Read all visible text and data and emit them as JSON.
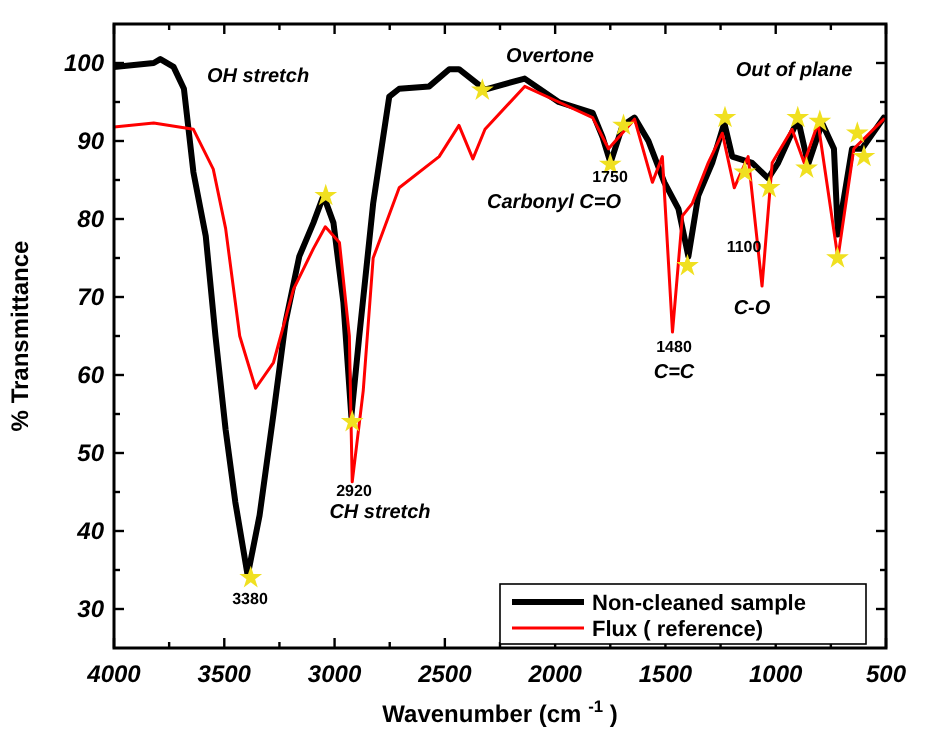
{
  "chart_data": {
    "type": "line",
    "xlabel": "Wavenumber (cm $^{-1}$ )",
    "ylabel": "% Transmittance",
    "xlim": [
      4000,
      500
    ],
    "ylim": [
      25,
      105
    ],
    "xticks": [
      4000,
      {
        "value": 3750,
        "label": null
      },
      3500,
      {
        "value": 3250,
        "label": null
      },
      3000,
      {
        "value": 2750,
        "label": null
      },
      2500,
      {
        "value": 2250,
        "label": null
      },
      2000,
      {
        "value": 1750,
        "label": null
      },
      1500,
      {
        "value": 1250,
        "label": null
      },
      1000,
      {
        "value": 750,
        "label": null
      },
      500
    ],
    "yticks": [
      30,
      {
        "value": 35,
        "label": null
      },
      40,
      {
        "value": 45,
        "label": null
      },
      50,
      {
        "value": 55,
        "label": null
      },
      60,
      {
        "value": 65,
        "label": null
      },
      70,
      {
        "value": 75,
        "label": null
      },
      80,
      {
        "value": 85,
        "label": null
      },
      90,
      {
        "value": 95,
        "label": null
      },
      100
    ],
    "grid": false,
    "legend": "bottom right",
    "series": [
      {
        "name": "Non-cleaned sample",
        "color": "#000000",
        "x": [
          4000,
          3820,
          3790,
          3730,
          3683,
          3640,
          3584,
          3540,
          3494,
          3450,
          3394,
          3340,
          3277,
          3222,
          3160,
          3096,
          3050,
          3005,
          2960,
          2924,
          2888,
          2825,
          2752,
          2707,
          2571,
          2480,
          2436,
          2318,
          2138,
          1984,
          1830,
          1785,
          1749,
          1694,
          1640,
          1577,
          1505,
          1441,
          1396,
          1351,
          1288,
          1233,
          1197,
          1107,
          1034,
          989,
          899,
          853,
          790,
          736,
          718,
          654,
          609,
          510
        ],
        "values": [
          99.5,
          100,
          100.5,
          99.5,
          96.7,
          86,
          77.8,
          65,
          53,
          43.7,
          34.3,
          42,
          55,
          66.8,
          75.2,
          79.5,
          83,
          79.5,
          69.3,
          54.7,
          65,
          82,
          95.7,
          96.7,
          97,
          99.2,
          99.2,
          96.6,
          98,
          95,
          93.6,
          90.5,
          87.2,
          92,
          93,
          90,
          84.7,
          81.3,
          75.2,
          83,
          87.2,
          92.3,
          88,
          87.2,
          85.2,
          87.2,
          92.8,
          87,
          92.3,
          89,
          78,
          89,
          89,
          93
        ]
      },
      {
        "name": "Flux ( reference)",
        "color": "#ff0000",
        "x": [
          4000,
          3820,
          3640,
          3550,
          3494,
          3430,
          3358,
          3277,
          3186,
          3096,
          3042,
          2978,
          2933,
          2920,
          2870,
          2825,
          2707,
          2526,
          2436,
          2373,
          2318,
          2138,
          1984,
          1830,
          1758,
          1640,
          1559,
          1514,
          1468,
          1423,
          1378,
          1306,
          1242,
          1188,
          1125,
          1062,
          1016,
          926,
          871,
          808,
          718,
          646,
          510
        ],
        "values": [
          91.8,
          92.3,
          91.5,
          86.4,
          78.8,
          65,
          58.3,
          61.6,
          71,
          76.2,
          79,
          77,
          65,
          46.3,
          58,
          75,
          84,
          88,
          92,
          87.7,
          91.5,
          97,
          95,
          93,
          89,
          92.8,
          84.7,
          88,
          65.5,
          80.4,
          82,
          87.2,
          91,
          84,
          88,
          71.4,
          87.2,
          91.5,
          87.2,
          92.3,
          75,
          89,
          92.8
        ]
      },
      {
        "type": "scatter",
        "marker": "star",
        "color": "#f0e020",
        "x": [
          3380,
          3040,
          2920,
          2330,
          1750,
          1690,
          1400,
          1230,
          1140,
          1030,
          900,
          860,
          800,
          720,
          630,
          600
        ],
        "values": [
          34,
          83,
          54,
          96.5,
          87,
          92,
          74,
          93,
          86,
          84,
          93,
          86.5,
          92.5,
          75,
          91,
          88
        ]
      }
    ],
    "annotations": [
      "OH stretch",
      "3380",
      "2920",
      "CH stretch",
      "Overtone",
      "Carbonyl C=O",
      "1750",
      "1480",
      "C=C",
      "1100",
      "C-O",
      "Out of plane"
    ]
  }
}
